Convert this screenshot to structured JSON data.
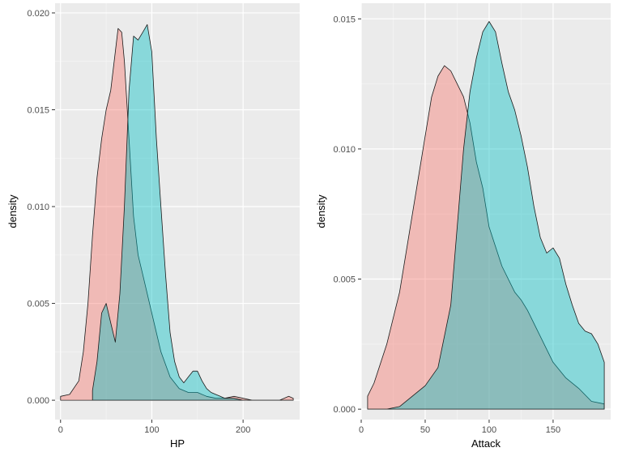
{
  "chart_data": [
    {
      "type": "area",
      "title": "",
      "xlabel": "HP",
      "ylabel": "density",
      "xlim": [
        -6,
        262
      ],
      "ylim": [
        -0.001,
        0.0205
      ],
      "x_ticks": [
        0,
        100,
        200
      ],
      "x_tick_labels": [
        "0",
        "100",
        "200"
      ],
      "y_ticks": [
        0,
        0.005,
        0.01,
        0.015,
        0.02
      ],
      "y_tick_labels": [
        "0.000",
        "0.005",
        "0.010",
        "0.015",
        "0.020"
      ],
      "grid": true,
      "legend": "none",
      "series": [
        {
          "color": "#F8766D",
          "x": [
            0,
            10,
            20,
            25,
            30,
            35,
            40,
            45,
            50,
            55,
            60,
            63,
            67,
            70,
            75,
            80,
            85,
            90,
            100,
            110,
            120,
            130,
            140,
            150,
            160,
            170,
            180,
            190,
            200,
            210,
            220,
            230,
            240,
            250,
            255
          ],
          "y": [
            0.0002,
            0.0003,
            0.001,
            0.0025,
            0.005,
            0.0085,
            0.0115,
            0.0135,
            0.015,
            0.016,
            0.018,
            0.0192,
            0.019,
            0.0175,
            0.0135,
            0.0095,
            0.0075,
            0.0065,
            0.0045,
            0.0025,
            0.0012,
            0.0006,
            0.0004,
            0.0004,
            0.0002,
            0.0001,
            0.0001,
            0.0002,
            0.0001,
            0.0,
            0.0,
            0.0,
            0.0,
            0.0002,
            0.0001
          ]
        },
        {
          "color": "#00BFC4",
          "x": [
            35,
            40,
            45,
            50,
            55,
            60,
            65,
            70,
            75,
            80,
            85,
            90,
            95,
            100,
            105,
            110,
            115,
            120,
            125,
            130,
            135,
            140,
            145,
            150,
            155,
            160,
            165,
            170,
            175,
            180,
            190,
            200,
            210,
            220,
            230,
            240,
            250,
            255
          ],
          "y": [
            0.0005,
            0.002,
            0.0045,
            0.005,
            0.004,
            0.003,
            0.0055,
            0.01,
            0.016,
            0.0188,
            0.0186,
            0.019,
            0.0194,
            0.018,
            0.0135,
            0.01,
            0.0065,
            0.0035,
            0.002,
            0.0012,
            0.0009,
            0.0012,
            0.0015,
            0.0015,
            0.001,
            0.0006,
            0.0004,
            0.0003,
            0.0002,
            0.0001,
            0.0001,
            0.0,
            0.0,
            0.0,
            0.0,
            0.0,
            0.0,
            0.0
          ]
        }
      ]
    },
    {
      "type": "area",
      "title": "",
      "xlabel": "Attack",
      "ylabel": "density",
      "xlim": [
        0,
        195
      ],
      "ylim": [
        -0.0004,
        0.0156
      ],
      "x_ticks": [
        0,
        50,
        100,
        150
      ],
      "x_tick_labels": [
        "0",
        "50",
        "100",
        "150"
      ],
      "y_ticks": [
        0,
        0.005,
        0.01,
        0.015
      ],
      "y_tick_labels": [
        "0.000",
        "0.005",
        "0.010",
        "0.015"
      ],
      "grid": true,
      "legend": "none",
      "series": [
        {
          "color": "#F8766D",
          "x": [
            5,
            10,
            20,
            30,
            40,
            50,
            55,
            60,
            65,
            70,
            75,
            80,
            85,
            90,
            95,
            100,
            110,
            120,
            125,
            130,
            140,
            150,
            160,
            170,
            180,
            190
          ],
          "y": [
            0.0005,
            0.001,
            0.0025,
            0.0045,
            0.0075,
            0.0105,
            0.012,
            0.0128,
            0.0132,
            0.013,
            0.0125,
            0.012,
            0.011,
            0.0095,
            0.0085,
            0.007,
            0.0055,
            0.0045,
            0.0042,
            0.0038,
            0.0028,
            0.0018,
            0.0012,
            0.0008,
            0.0003,
            0.0002
          ]
        },
        {
          "color": "#00BFC4",
          "x": [
            5,
            20,
            30,
            40,
            50,
            60,
            70,
            75,
            80,
            85,
            90,
            95,
            100,
            105,
            110,
            115,
            120,
            125,
            130,
            135,
            140,
            145,
            150,
            155,
            160,
            165,
            170,
            175,
            180,
            185,
            190
          ],
          "y": [
            0.0,
            0.0,
            0.0001,
            0.0005,
            0.0009,
            0.0016,
            0.004,
            0.007,
            0.01,
            0.0122,
            0.0135,
            0.0145,
            0.0149,
            0.0145,
            0.0133,
            0.0122,
            0.0115,
            0.0105,
            0.0093,
            0.0078,
            0.0066,
            0.006,
            0.0062,
            0.0058,
            0.0048,
            0.004,
            0.0033,
            0.003,
            0.0029,
            0.0025,
            0.0018
          ]
        }
      ]
    }
  ]
}
